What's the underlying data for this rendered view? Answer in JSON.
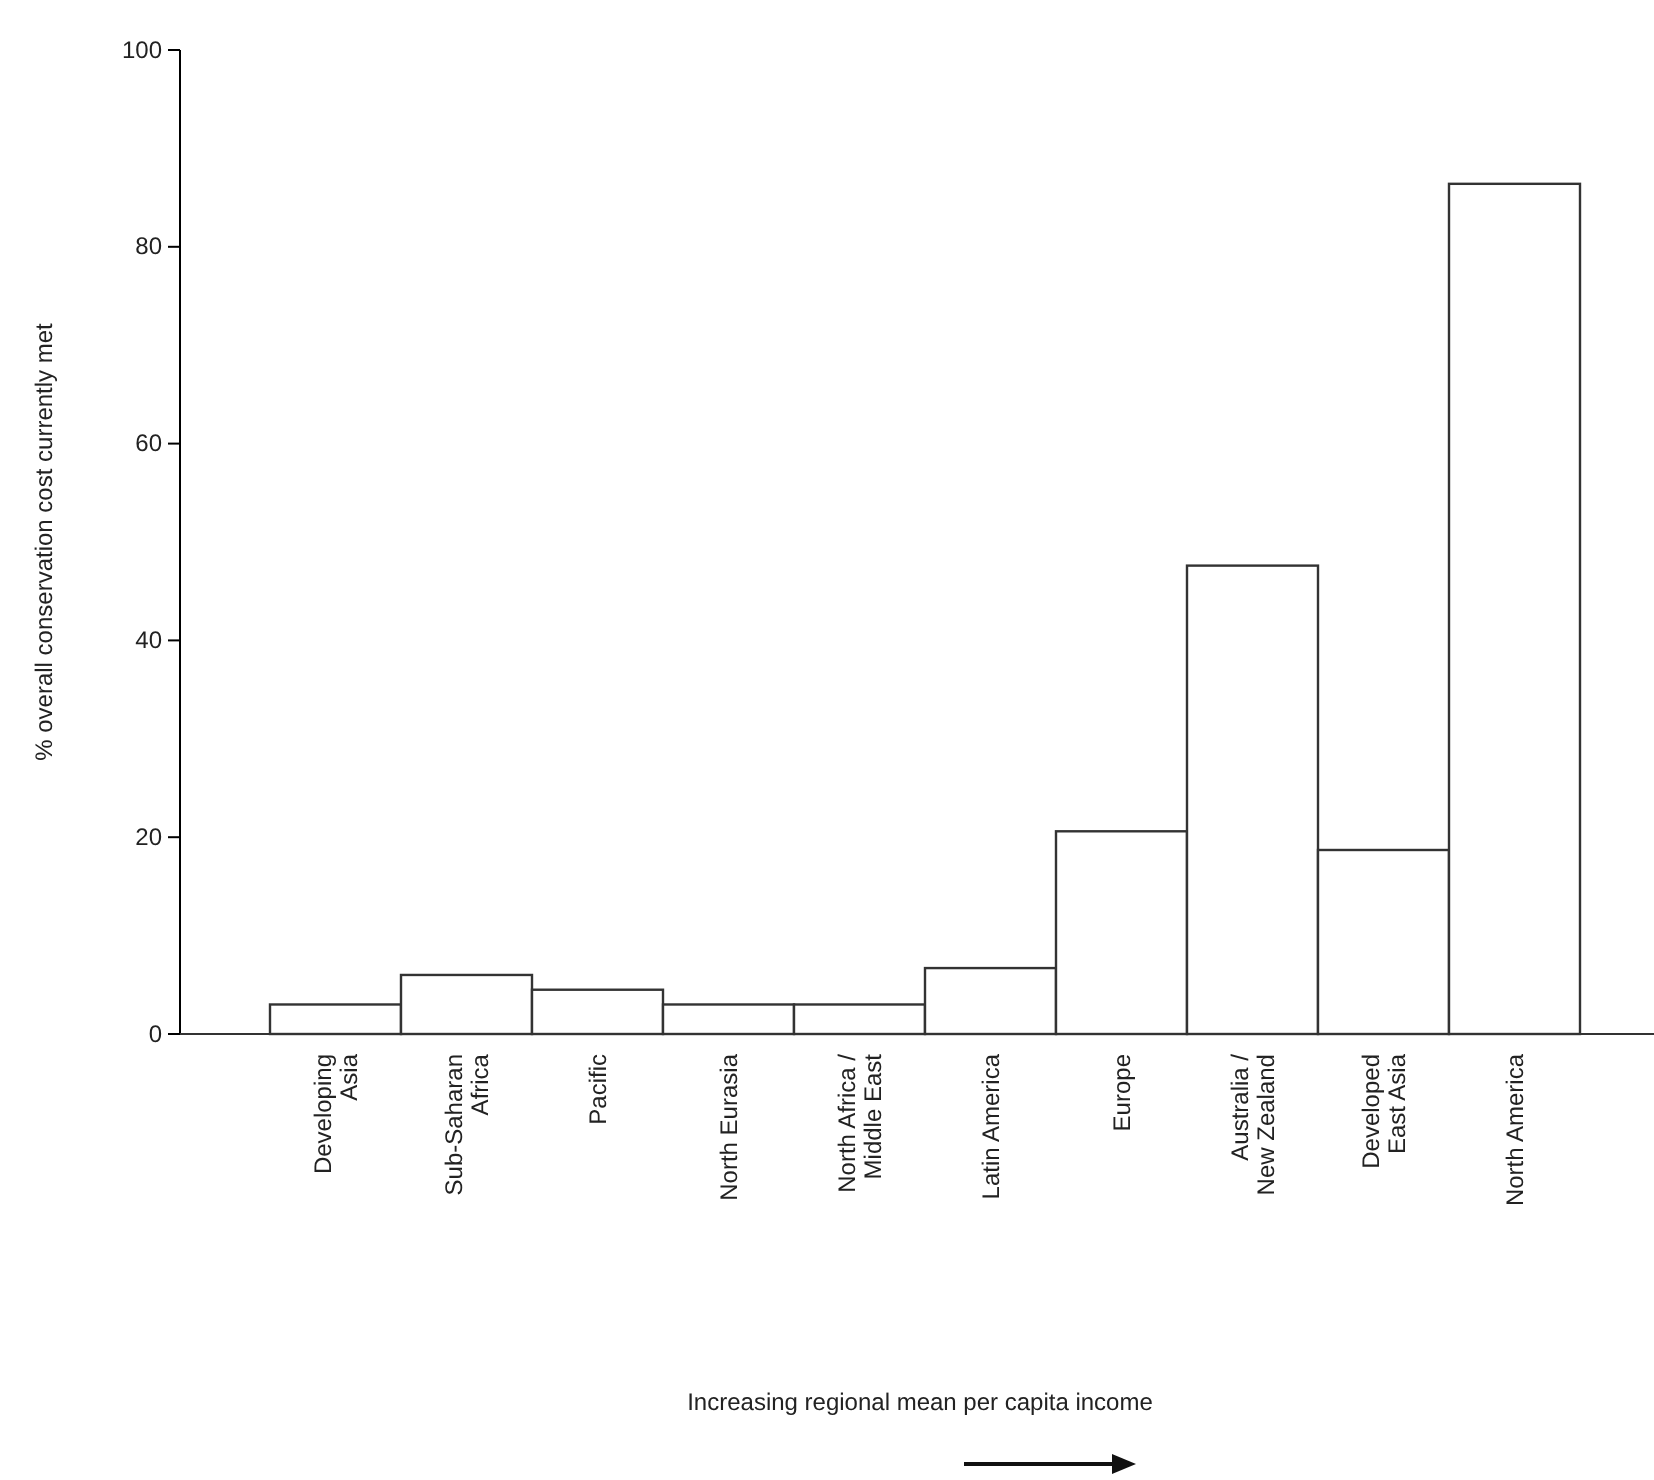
{
  "chart_data": {
    "type": "bar",
    "ylabel": "% overall conservation cost currently met",
    "annotations": [
      "Increasing regional mean per capita income"
    ],
    "categories": [
      "Developing\nAsia",
      "Sub-Saharan\nAfrica",
      "Pacific",
      "North Eurasia",
      "North Africa /\nMiddle East",
      "Latin America",
      "Europe",
      "Australia /\nNew Zealand",
      "Developed\nEast Asia",
      "North America"
    ],
    "values": [
      3,
      6,
      4.5,
      3,
      3,
      6.7,
      20.6,
      47.6,
      18.7,
      86.4
    ],
    "color": "#ffffff",
    "ylim": [
      0,
      100
    ],
    "yticks": [
      0,
      20,
      40,
      60,
      80,
      100
    ],
    "grid": false
  }
}
